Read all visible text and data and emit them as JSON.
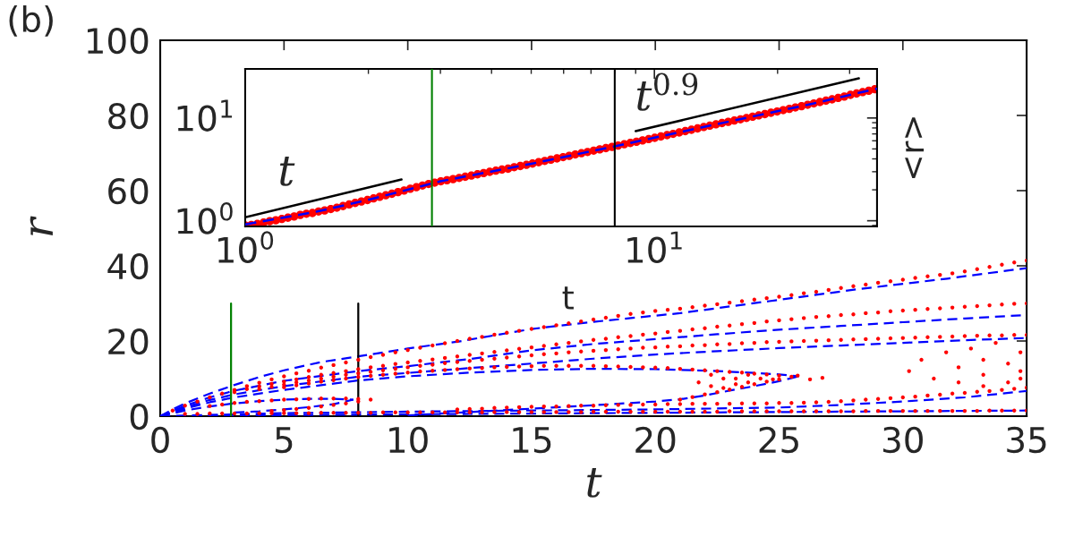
{
  "chart_data": [
    {
      "type": "scatter",
      "xlabel": "t",
      "ylabel": "r",
      "annotations": [
        "(b)"
      ],
      "xlim": [
        0,
        35
      ],
      "ylim": [
        0,
        100
      ],
      "xticks": [
        0,
        5,
        10,
        15,
        20,
        25,
        30,
        35
      ],
      "yticks": [
        0,
        20,
        40,
        60,
        80,
        100
      ],
      "x": [
        0.5,
        1,
        1.5,
        2,
        2.5,
        3,
        3.5,
        4,
        4.5,
        5,
        5.5,
        6,
        6.5,
        7,
        7.5,
        8,
        8.5,
        9,
        9.5,
        10,
        10.5,
        11,
        11.5,
        12,
        12.5,
        13,
        13.5,
        14,
        14.5,
        15,
        15.5,
        16,
        16.5,
        17,
        17.5,
        18,
        18.5,
        19,
        19.5,
        20,
        20.5,
        21,
        21.5,
        22,
        22.5,
        23,
        23.5,
        24,
        24.5,
        25,
        25.5,
        26,
        26.5,
        27,
        27.5,
        28,
        28.5,
        29,
        29.5,
        30,
        30.5,
        31,
        31.5,
        32,
        32.5,
        33,
        33.5,
        34,
        34.5,
        35
      ],
      "series": [
        {
          "color": "#ff0000",
          "marker": "circle",
          "values": [
            1.5,
            2.8,
            3.9,
            5,
            6,
            7,
            8,
            8.9,
            9.8,
            10.6,
            11.4,
            12.1,
            12.9,
            13.6,
            14.3,
            15,
            15.7,
            16.3,
            17,
            17.6,
            18.2,
            18.8,
            19.4,
            20,
            20.6,
            21.1,
            21.7,
            22.2,
            22.7,
            23.2,
            23.7,
            24.2,
            24.7,
            25.2,
            25.7,
            26.2,
            26.7,
            27.2,
            27.6,
            28,
            28.3,
            28.6,
            29,
            29.4,
            29.8,
            30.2,
            30.6,
            31,
            31.4,
            31.8,
            32.2,
            32.7,
            33.1,
            33.6,
            34.1,
            34.6,
            35,
            35.5,
            35.9,
            36.3,
            36.8,
            37.2,
            37.6,
            38,
            38.5,
            39.1,
            39.7,
            40.3,
            40.9,
            41.4
          ]
        },
        {
          "color": "#ff0000",
          "marker": "circle",
          "values": [
            null,
            null,
            null,
            null,
            null,
            6.4,
            7.2,
            7.9,
            8.6,
            9.2,
            9.8,
            10.4,
            11,
            11.5,
            12,
            12.5,
            13,
            13.4,
            13.9,
            14.3,
            14.7,
            15.1,
            15.5,
            15.9,
            16.3,
            16.7,
            17.1,
            17.5,
            17.9,
            18.3,
            18.7,
            19.1,
            19.5,
            19.9,
            20.3,
            20.6,
            21,
            21.3,
            21.7,
            22,
            22.4,
            22.7,
            23.1,
            23.4,
            23.8,
            24.1,
            24.5,
            24.8,
            25.2,
            25.5,
            25.8,
            26.1,
            26.4,
            26.6,
            26.9,
            27.1,
            27.4,
            27.6,
            27.9,
            28.1,
            28.3,
            28.5,
            28.7,
            28.9,
            29.1,
            29.3,
            29.5,
            29.7,
            29.9,
            30
          ]
        },
        {
          "color": "#ff0000",
          "marker": "circle",
          "values": [
            null,
            null,
            null,
            null,
            null,
            null,
            null,
            7.2,
            7.8,
            8.4,
            9,
            9.5,
            10,
            10.5,
            11,
            11.4,
            11.8,
            12.2,
            12.6,
            13,
            13.4,
            13.7,
            14.1,
            14.4,
            14.7,
            15,
            15.3,
            15.6,
            15.9,
            16.2,
            16.5,
            16.7,
            17,
            17.2,
            17.4,
            17.6,
            17.8,
            18,
            18.2,
            18.3,
            18.5,
            18.6,
            18.8,
            18.9,
            19.1,
            19.2,
            19.4,
            19.5,
            19.7,
            19.8,
            19.9,
            20,
            20.1,
            20.2,
            20.3,
            20.4,
            20.5,
            20.6,
            20.7,
            20.8,
            20.9,
            21,
            21.1,
            21.2,
            21.3,
            21.4,
            21.5,
            21.5,
            21.6,
            21.6
          ]
        },
        {
          "color": "#ff0000",
          "marker": "circle",
          "x": [
            5,
            5.5,
            6,
            6.5,
            7,
            7.5,
            8,
            8.5,
            9,
            9.5,
            10,
            10.5,
            11,
            11.5,
            12,
            12.5,
            13,
            13.5,
            14,
            14.5,
            15,
            15.5,
            16,
            16.5,
            17,
            17.5,
            18,
            18.5,
            19,
            19.5,
            20,
            20.5,
            21,
            21.5,
            22,
            22.5,
            23,
            23.5,
            24,
            24.5,
            25,
            25.5
          ],
          "values": [
            7.7,
            8.2,
            8.7,
            9.2,
            9.6,
            10,
            10.4,
            10.7,
            11,
            11.3,
            11.6,
            11.9,
            12.1,
            12.3,
            12.5,
            12.7,
            12.8,
            13,
            13.1,
            13.2,
            13.3,
            13.4,
            13.4,
            13.4,
            13.4,
            13.4,
            13.3,
            13.2,
            13.1,
            13,
            12.9,
            12.8,
            12.6,
            12.4,
            12.2,
            12,
            11.8,
            11.6,
            11.3,
            11.1,
            10.8,
            10.5
          ]
        },
        {
          "color": "#ff0000",
          "marker": "circle",
          "x": [
            21,
            21.5,
            22,
            22.5,
            23,
            23.5,
            24,
            24.5,
            25
          ],
          "values": [
            4.4,
            5.1,
            5.8,
            6.4,
            7.1,
            7.8,
            8.5,
            9.2,
            9.8
          ]
        },
        {
          "color": "#ff0000",
          "marker": "circle",
          "x": [
            12,
            12.5,
            13,
            13.5,
            14,
            14.5,
            15,
            15.5,
            16,
            16.5,
            17,
            17.5,
            18,
            18.5,
            19,
            19.5,
            20,
            20.5,
            21,
            21.5,
            22,
            22.5,
            23,
            23.5,
            24,
            24.5,
            25,
            25.5,
            26,
            26.5,
            27,
            27.5,
            28,
            28.5,
            29,
            29.5,
            30,
            30.5,
            31,
            31.5,
            32,
            32.5,
            33,
            33.5,
            34,
            34.5,
            35
          ],
          "values": [
            1.8,
            1.9,
            2,
            2.2,
            2.3,
            2.4,
            2.5,
            2.6,
            2.6,
            2.7,
            2.8,
            2.8,
            2.9,
            3,
            3,
            3.1,
            3.1,
            3.2,
            3.2,
            3.3,
            3.3,
            3.3,
            3.3,
            3.4,
            3.4,
            3.4,
            3.5,
            3.5,
            3.6,
            3.7,
            3.8,
            4,
            4.2,
            4.4,
            4.6,
            4.8,
            5,
            5.2,
            5.5,
            5.7,
            6,
            6.2,
            6.5,
            6.7,
            7,
            7.3,
            7.6
          ]
        },
        {
          "color": "#ff0000",
          "marker": "circle",
          "values": [
            null,
            0.6,
            0.6,
            0.7,
            0.7,
            0.7,
            0.7,
            0.8,
            0.8,
            0.8,
            0.8,
            0.8,
            0.9,
            0.9,
            0.9,
            0.9,
            0.9,
            1,
            1,
            1,
            1,
            1,
            1,
            1,
            1,
            1,
            1.1,
            1.1,
            1.1,
            1.1,
            1.1,
            1.1,
            1.1,
            1.1,
            1.2,
            1.2,
            1.2,
            1.2,
            1.2,
            1.2,
            1.2,
            1.2,
            1.2,
            1.2,
            1.2,
            1.3,
            1.3,
            1.3,
            1.3,
            1.3,
            1.3,
            1.3,
            1.3,
            1.3,
            1.3,
            1.3,
            1.4,
            1.4,
            1.4,
            1.4,
            1.4,
            1.4,
            1.4,
            1.4,
            1.4,
            1.4,
            1.5,
            1.5,
            1.5,
            1.5
          ]
        },
        {
          "color": "#ff0000",
          "marker": "circle",
          "x": [
            2,
            2.5,
            3,
            3.5,
            4,
            4.5,
            5,
            5.5,
            6,
            6.5,
            7,
            7.5,
            8,
            8.5
          ],
          "values": [
            2.7,
            3.1,
            3.5,
            3.8,
            4,
            4.2,
            4.4,
            4.5,
            4.6,
            4.7,
            4.7,
            4.7,
            4.6,
            4.4
          ]
        },
        {
          "color": "#ff0000",
          "marker": "circle",
          "x": [
            4.5,
            5,
            5.5,
            6,
            6.5,
            7,
            7.5,
            8
          ],
          "values": [
            1.4,
            1.6,
            1.9,
            2.2,
            2.6,
            3,
            3.4,
            3.9
          ]
        },
        {
          "color": "#ff0000",
          "marker": "circle",
          "x": [
            21.75,
            22.25,
            22.25,
            22.75,
            22.75,
            23.25,
            23.25,
            23.75,
            23.75,
            24.25,
            24.75,
            25.75,
            26.25,
            26.75
          ],
          "values": [
            9,
            8,
            11,
            7.5,
            10,
            8.5,
            10,
            9,
            11,
            10,
            9.8,
            10.8,
            9.8,
            10.2
          ]
        },
        {
          "color": "#ff0000",
          "marker": "circle",
          "x": [
            30.25,
            30.75,
            31.25,
            31.75,
            32.25,
            32.25,
            32.75,
            33.25,
            33.25,
            33.75,
            34.25,
            34.25,
            34.75,
            34.75,
            34.75,
            33.25
          ],
          "values": [
            12,
            15,
            10,
            17,
            13,
            9,
            18,
            11,
            15,
            19.5,
            9,
            14,
            12,
            17,
            10,
            8
          ]
        },
        {
          "type": "line",
          "color": "#0000ff",
          "line_style": "dashed",
          "marker": "none",
          "x": [
            0,
            0.5,
            1,
            2,
            3,
            4,
            5,
            6.5,
            8,
            10,
            12,
            15,
            17.5,
            21,
            24.6,
            28.2,
            31.8,
            35
          ],
          "values": [
            0,
            1.8,
            3.4,
            6,
            8.3,
            10.4,
            12.2,
            14.4,
            15.9,
            18,
            19.8,
            23.2,
            25.1,
            27.4,
            30.6,
            33.8,
            36.6,
            39.4
          ]
        },
        {
          "type": "line",
          "color": "#0000ff",
          "line_style": "dashed",
          "marker": "none",
          "x": [
            0,
            1,
            2,
            3,
            5,
            8,
            10,
            12.5,
            15,
            17.5,
            20,
            22.5,
            25,
            27.5,
            30,
            32.5,
            35
          ],
          "values": [
            0,
            2.8,
            5,
            6.8,
            9.4,
            12,
            13.3,
            15.2,
            17.5,
            19.2,
            20.5,
            21.8,
            23,
            24,
            25,
            26,
            26.9
          ]
        },
        {
          "type": "line",
          "color": "#0000ff",
          "line_style": "dashed",
          "marker": "none",
          "x": [
            0,
            1,
            2,
            3,
            5,
            8,
            10,
            12.5,
            15,
            17.5,
            20,
            22.5,
            25,
            27.5,
            30,
            32.5,
            35
          ],
          "values": [
            0,
            2.4,
            4.3,
            5.8,
            8,
            10.5,
            11.5,
            12.8,
            14,
            15.3,
            16.4,
            17.3,
            18.1,
            18.8,
            19.5,
            20.2,
            20.8
          ]
        },
        {
          "type": "line",
          "color": "#0000ff",
          "line_style": "dashed",
          "marker": "none",
          "x": [
            0,
            1,
            2,
            3,
            5,
            8,
            10,
            12.5,
            15,
            17.5,
            20,
            22.5,
            24,
            25,
            25.8
          ],
          "values": [
            0,
            2,
            3.7,
            5,
            7,
            9.5,
            10.6,
            11.6,
            12.3,
            12.6,
            12.5,
            12,
            11.5,
            11.1,
            10.6
          ]
        },
        {
          "type": "line",
          "color": "#0000ff",
          "line_style": "dashed",
          "marker": "none",
          "x": [
            10,
            12.5,
            15,
            17.5,
            20,
            21,
            22,
            23,
            24,
            25,
            25.8
          ],
          "values": [
            0.2,
            1.1,
            2,
            2.9,
            3.9,
            4.5,
            5.5,
            6.8,
            8,
            9.3,
            10.6
          ]
        },
        {
          "type": "line",
          "color": "#0000ff",
          "line_style": "dashed",
          "marker": "none",
          "x": [
            0,
            5,
            10,
            15,
            20,
            25,
            27.5,
            30,
            32.5,
            35
          ],
          "values": [
            0,
            0.8,
            1.2,
            1.5,
            1.8,
            2.3,
            3,
            3.9,
            5,
            6.7
          ]
        },
        {
          "type": "line",
          "color": "#0000ff",
          "line_style": "dashed",
          "marker": "none",
          "x": [
            0,
            5,
            10,
            15,
            20,
            25,
            30,
            35
          ],
          "values": [
            0,
            0.3,
            0.5,
            0.7,
            0.9,
            1.1,
            1.3,
            1.5
          ]
        },
        {
          "type": "line",
          "color": "#0000ff",
          "line_style": "dashed",
          "marker": "none",
          "x": [
            0,
            1,
            2,
            3,
            4,
            5,
            6,
            7,
            7.8
          ],
          "values": [
            0,
            1.5,
            2.6,
            3.4,
            4,
            4.4,
            4.6,
            4.6,
            4.4
          ]
        },
        {
          "type": "line",
          "color": "#0000ff",
          "line_style": "dashed",
          "marker": "none",
          "x": [
            3,
            4,
            5,
            6,
            7,
            7.8
          ],
          "values": [
            1,
            1.3,
            1.8,
            2.4,
            3.2,
            4.4
          ]
        },
        {
          "type": "line",
          "color": "#008000",
          "line_style": "solid",
          "marker": "none",
          "x": [
            2.86,
            2.86
          ],
          "values": [
            0,
            30
          ]
        },
        {
          "type": "line",
          "color": "#000000",
          "line_style": "solid",
          "marker": "none",
          "x": [
            8,
            8
          ],
          "values": [
            0,
            30
          ]
        }
      ]
    },
    {
      "type": "line",
      "xlabel": "t",
      "ylabel": "<r>",
      "log": "xy",
      "xlim": [
        1,
        35
      ],
      "ylim": [
        0.88,
        30
      ],
      "xticks": [
        {
          "value": 1,
          "label": "10$^{0}$"
        },
        {
          "value": 10,
          "label": "10$^{1}$"
        }
      ],
      "yticks": [
        {
          "value": 1,
          "label": "10$^{0}$"
        },
        {
          "value": 10,
          "label": "10$^{1}$"
        }
      ],
      "annotations": [
        "t",
        "t$^{0.9}$"
      ],
      "ref_lines": [
        {
          "axis": "x",
          "value": 2.86,
          "color": "#008000"
        },
        {
          "axis": "x",
          "value": 8,
          "color": "#000000"
        }
      ],
      "series": [
        {
          "type": "scatter",
          "color": "#ff0000",
          "marker": "circle",
          "x": [
            1,
            1.035,
            1.071,
            1.109,
            1.148,
            1.188,
            1.229,
            1.272,
            1.317,
            1.363,
            1.411,
            1.46,
            1.511,
            1.564,
            1.619,
            1.675,
            1.734,
            1.795,
            1.857,
            1.923,
            1.99,
            2.059,
            2.132,
            2.206,
            2.283,
            2.363,
            2.446,
            2.532,
            2.62,
            2.712,
            2.807,
            2.905,
            3.007,
            3.112,
            3.221,
            3.334,
            3.45,
            3.571,
            3.696,
            3.825,
            3.959,
            4.098,
            4.241,
            4.39,
            4.543,
            4.702,
            4.867,
            5.037,
            5.214,
            5.396,
            5.585,
            5.78,
            5.983,
            6.192,
            6.409,
            6.633,
            6.865,
            7.106,
            7.354,
            7.612,
            7.878,
            8.154,
            8.439,
            8.734,
            9.04,
            9.356,
            9.684,
            10.02,
            10.37,
            10.74,
            11.11,
            11.5,
            11.9,
            12.32,
            12.75,
            13.2,
            13.66,
            14.14,
            14.63,
            15.15,
            15.68,
            16.23,
            16.79,
            17.38,
            17.99,
            18.62,
            19.27,
            19.95,
            20.64,
            21.37,
            22.11,
            22.89,
            23.69,
            24.52,
            25.38,
            26.26,
            27.18,
            28.13,
            29.12,
            30.14,
            31.19,
            32.28,
            33.41,
            34.58
          ],
          "values": [
            0.9,
            0.91,
            0.93,
            0.96,
            0.99,
            1.01,
            1.04,
            1.07,
            1.1,
            1.14,
            1.17,
            1.19,
            1.23,
            1.26,
            1.3,
            1.34,
            1.39,
            1.44,
            1.49,
            1.54,
            1.59,
            1.65,
            1.71,
            1.77,
            1.83,
            1.9,
            1.97,
            2.05,
            2.12,
            2.2,
            2.28,
            2.35,
            2.42,
            2.48,
            2.54,
            2.61,
            2.68,
            2.75,
            2.83,
            2.91,
            2.99,
            3.07,
            3.15,
            3.21,
            3.32,
            3.41,
            3.5,
            3.6,
            3.71,
            3.82,
            3.93,
            4.04,
            4.16,
            4.28,
            4.42,
            4.54,
            4.67,
            4.81,
            4.95,
            5.09,
            5.23,
            5.39,
            5.55,
            5.71,
            5.87,
            6.05,
            6.23,
            6.41,
            6.61,
            6.81,
            7.01,
            7.23,
            7.45,
            7.68,
            7.91,
            8.16,
            8.41,
            8.67,
            8.92,
            9.17,
            9.44,
            9.71,
            10,
            10.29,
            10.59,
            10.91,
            11.24,
            11.57,
            11.92,
            12.28,
            12.66,
            13.04,
            13.44,
            13.86,
            14.29,
            14.73,
            15.19,
            15.67,
            16.17,
            16.78,
            17.3,
            17.84,
            18.41,
            19.05
          ]
        },
        {
          "color": "#0000ff",
          "line_style": "dashed",
          "marker": "none",
          "x": [
            1,
            1.5,
            2,
            3,
            5,
            8,
            14,
            24,
            35
          ],
          "values": [
            0.92,
            1.23,
            1.6,
            2.42,
            3.58,
            5.3,
            8.6,
            13.6,
            19.3
          ]
        },
        {
          "color": "#000000",
          "line_style": "solid",
          "marker": "none",
          "x": [
            1,
            2.41
          ],
          "values": [
            1.08,
            2.52
          ]
        },
        {
          "color": "#000000",
          "line_style": "solid",
          "marker": "none",
          "x": [
            9.0,
            31.6
          ],
          "values": [
            7.44,
            24.3
          ]
        }
      ]
    }
  ]
}
